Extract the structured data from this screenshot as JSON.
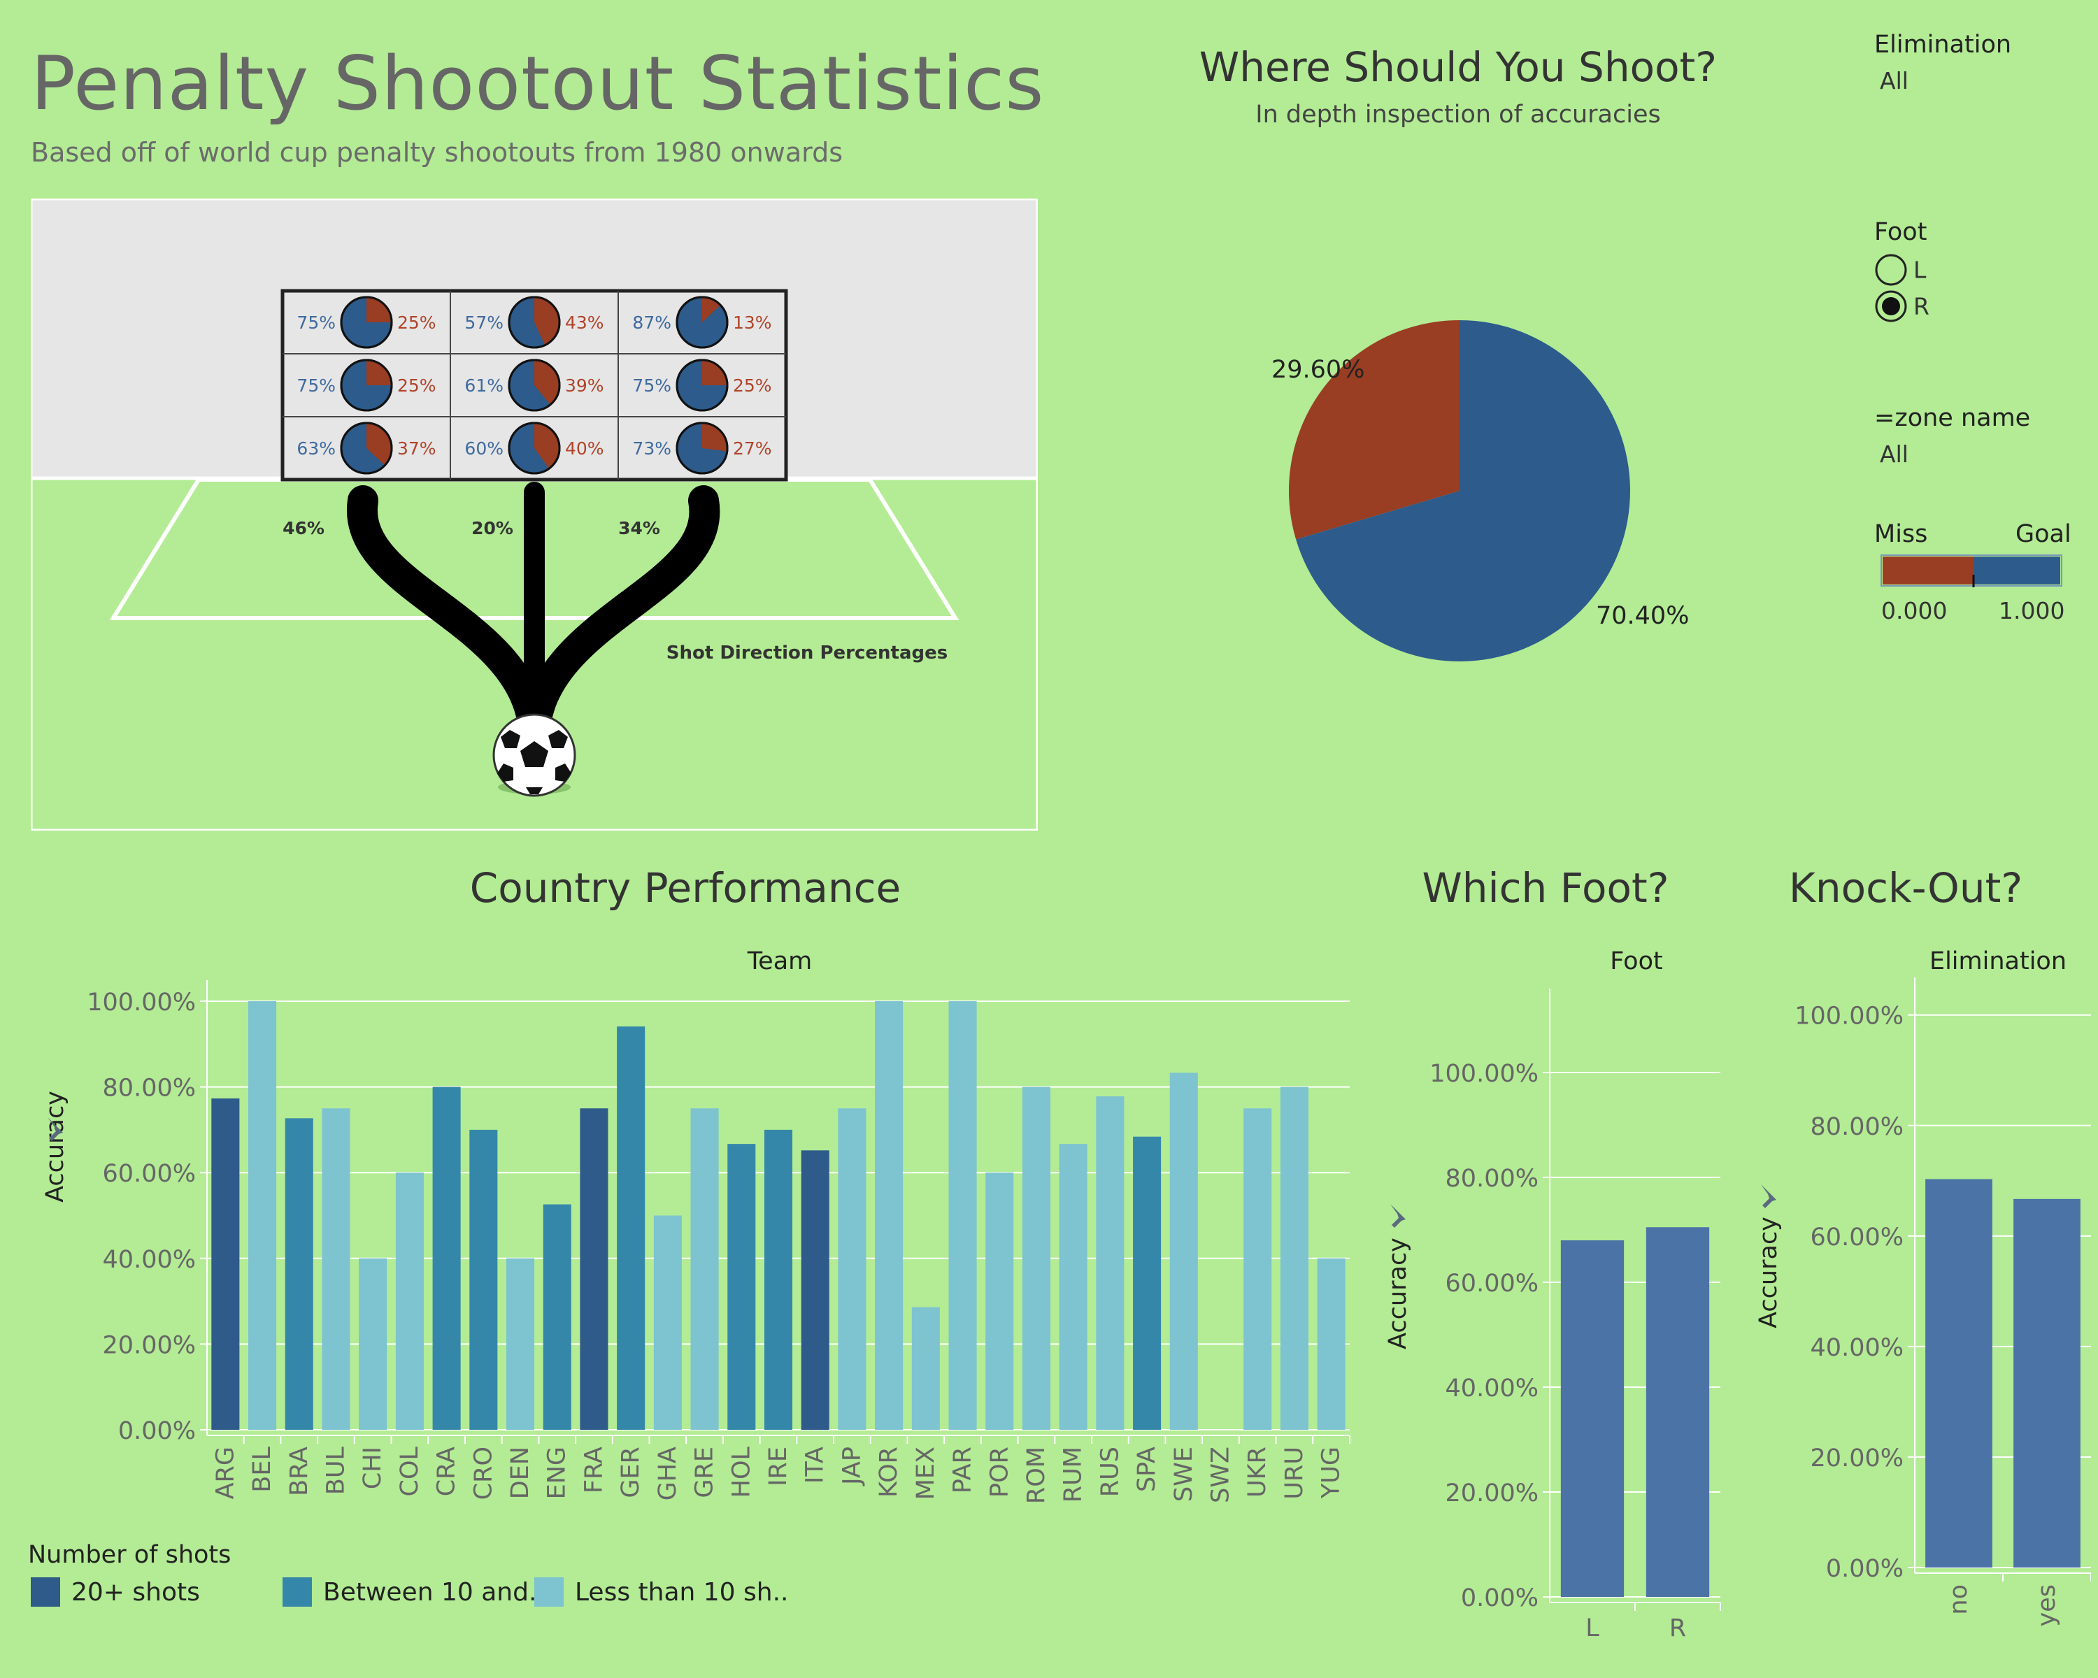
{
  "header": {
    "title": "Penalty Shootout Statistics",
    "subtitle": "Based off of world cup penalty shootouts from 1980 onwards"
  },
  "goal_panel": {
    "caption": "Shot Direction Percentages",
    "direction_percentages": [
      "46%",
      "20%",
      "34%"
    ],
    "zones": [
      {
        "goal": 0.75,
        "goal_label": "75%",
        "miss_label": "25%"
      },
      {
        "goal": 0.57,
        "goal_label": "57%",
        "miss_label": "43%"
      },
      {
        "goal": 0.87,
        "goal_label": "87%",
        "miss_label": "13%"
      },
      {
        "goal": 0.75,
        "goal_label": "75%",
        "miss_label": "25%"
      },
      {
        "goal": 0.61,
        "goal_label": "61%",
        "miss_label": "39%"
      },
      {
        "goal": 0.75,
        "goal_label": "75%",
        "miss_label": "25%"
      },
      {
        "goal": 0.63,
        "goal_label": "63%",
        "miss_label": "37%"
      },
      {
        "goal": 0.6,
        "goal_label": "60%",
        "miss_label": "40%"
      },
      {
        "goal": 0.73,
        "goal_label": "73%",
        "miss_label": "27%"
      }
    ]
  },
  "pie_section": {
    "title": "Where Should You Shoot?",
    "subtitle": "In depth inspection of accuracies"
  },
  "filters": {
    "elimination": {
      "title": "Elimination",
      "value": "All"
    },
    "foot": {
      "title": "Foot",
      "options": [
        "L",
        "R"
      ],
      "selected": "R"
    },
    "zone_name": {
      "title": "=zone name",
      "value": "All"
    },
    "color_legend": {
      "miss_label": "Miss",
      "goal_label": "Goal",
      "min_label": "0.000",
      "max_label": "1.000"
    }
  },
  "colors": {
    "background": "#b3ec94",
    "miss": "#993d23",
    "goal": "#2c5b8c",
    "shots_20_plus": "#2e5b8a",
    "shots_10_to_20": "#3587aa",
    "shots_less_10": "#7dc3d0",
    "foot_bar": "#4b73a6"
  },
  "country_section": {
    "title": "Country Performance"
  },
  "foot_section": {
    "title": "Which Foot?"
  },
  "knockout_section": {
    "title": "Knock-Out?"
  },
  "legend": {
    "title": "Number of shots",
    "items": [
      "20+ shots",
      "Between 10 and..",
      "Less than 10 sh.."
    ]
  },
  "chart_data": [
    {
      "type": "pie",
      "labels": [
        "Miss",
        "Goal"
      ],
      "values": [
        29.6,
        70.4
      ],
      "value_labels": [
        "29.60%",
        "70.40%"
      ]
    },
    {
      "type": "bar",
      "title": "Team",
      "xlabel": "Team",
      "ylabel": "Accuracy",
      "ylim": [
        0,
        1
      ],
      "yticks": [
        "0.00%",
        "20.00%",
        "40.00%",
        "60.00%",
        "80.00%",
        "100.00%"
      ],
      "categories": [
        "ARG",
        "BEL",
        "BRA",
        "BUL",
        "CHI",
        "COL",
        "CRA",
        "CRO",
        "DEN",
        "ENG",
        "FRA",
        "GER",
        "GHA",
        "GRE",
        "HOL",
        "IRE",
        "ITA",
        "JAP",
        "KOR",
        "MEX",
        "PAR",
        "POR",
        "ROM",
        "RUM",
        "RUS",
        "SPA",
        "SWE",
        "SWZ",
        "UKR",
        "URU",
        "YUG"
      ],
      "values": [
        0.773,
        1.0,
        0.727,
        0.75,
        0.4,
        0.6,
        0.8,
        0.7,
        0.4,
        0.526,
        0.75,
        0.941,
        0.5,
        0.75,
        0.667,
        0.7,
        0.652,
        0.75,
        1.0,
        0.286,
        1.0,
        0.6,
        0.8,
        0.667,
        0.778,
        0.684,
        0.833,
        0.0,
        0.75,
        0.8,
        0.4
      ],
      "shot_groups": [
        "20+",
        "<10",
        "10-20",
        "<10",
        "<10",
        "<10",
        "10-20",
        "10-20",
        "<10",
        "10-20",
        "20+",
        "10-20",
        "<10",
        "<10",
        "10-20",
        "10-20",
        "20+",
        "<10",
        "<10",
        "<10",
        "<10",
        "<10",
        "<10",
        "<10",
        "<10",
        "10-20",
        "<10",
        "<10",
        "<10",
        "<10",
        "<10"
      ]
    },
    {
      "type": "bar",
      "title": "Foot",
      "xlabel": "Foot",
      "ylabel": "Accuracy",
      "ylim": [
        0,
        1.12
      ],
      "yticks": [
        "0.00%",
        "20.00%",
        "40.00%",
        "60.00%",
        "80.00%",
        "100.00%"
      ],
      "categories": [
        "L",
        "R"
      ],
      "values": [
        0.68,
        0.705
      ]
    },
    {
      "type": "bar",
      "title": "Elimination",
      "xlabel": "Elimination",
      "ylabel": "Accuracy",
      "ylim": [
        0,
        1.03
      ],
      "yticks": [
        "0.00%",
        "20.00%",
        "40.00%",
        "60.00%",
        "80.00%",
        "100.00%"
      ],
      "categories": [
        "no",
        "yes"
      ],
      "values": [
        0.703,
        0.667
      ]
    }
  ]
}
